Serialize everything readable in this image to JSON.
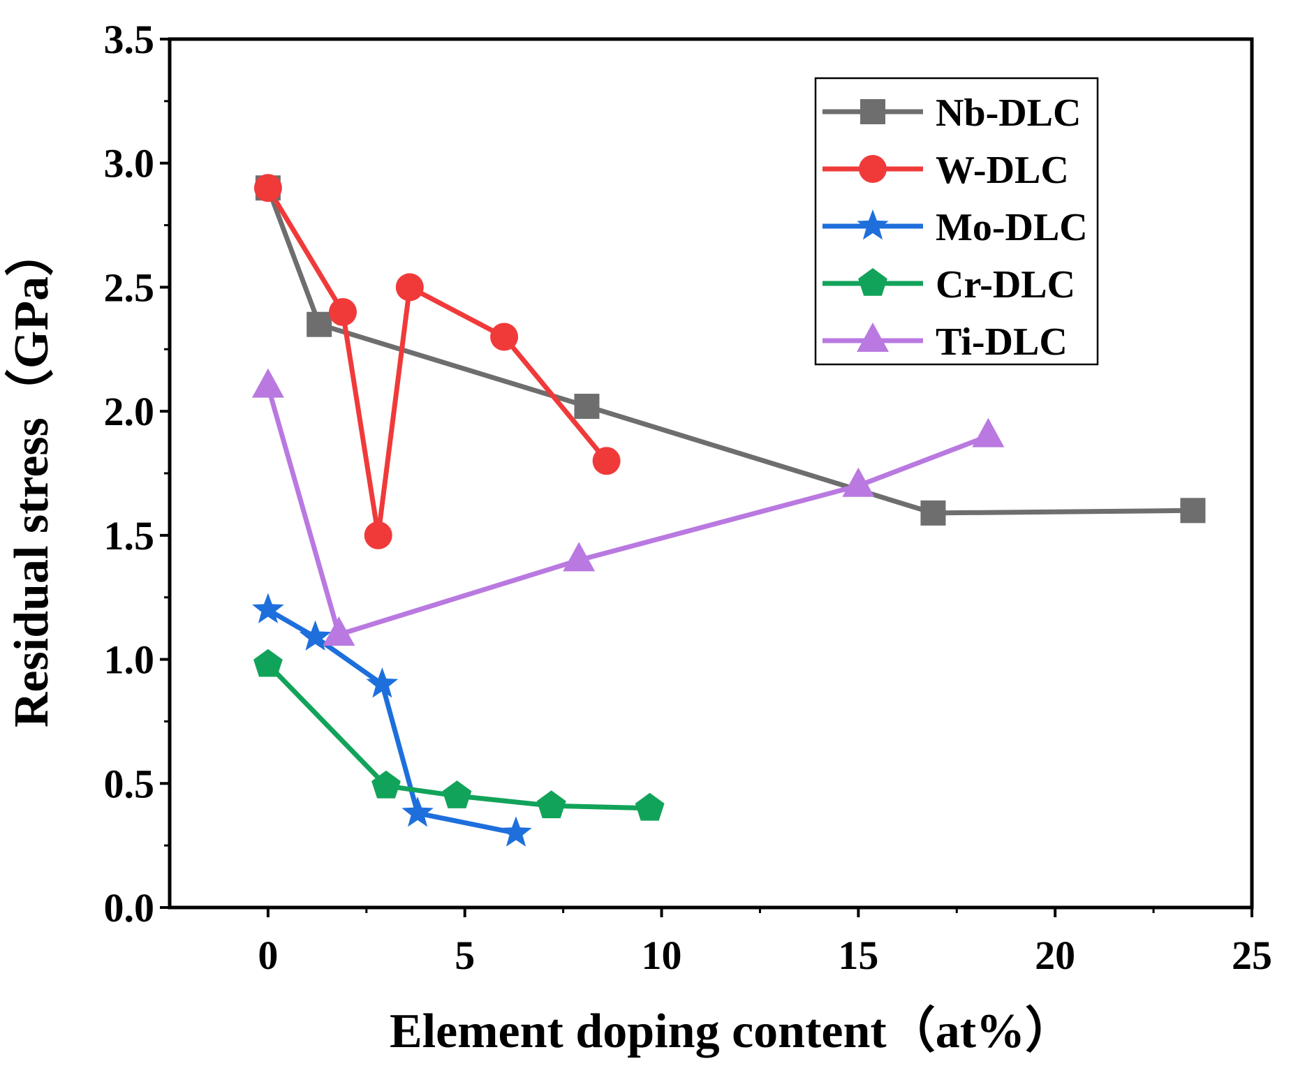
{
  "chart_data": {
    "type": "line",
    "title": "",
    "xlabel": "Element doping content（at%）",
    "ylabel": "Residual stress（GPa）",
    "xlim": [
      -2.5,
      25
    ],
    "ylim": [
      0,
      3.5
    ],
    "x_ticks": [
      0,
      5,
      10,
      15,
      20,
      25
    ],
    "y_ticks": [
      0.0,
      0.5,
      1.0,
      1.5,
      2.0,
      2.5,
      3.0,
      3.5
    ],
    "x_tick_labels": [
      "0",
      "5",
      "10",
      "15",
      "20",
      "25"
    ],
    "y_tick_labels": [
      "0.0",
      "0.5",
      "1.0",
      "1.5",
      "2.0",
      "2.5",
      "3.0",
      "3.5"
    ],
    "grid": false,
    "legend_position": "top-right",
    "series": [
      {
        "name": "Nb-DLC",
        "marker": "square",
        "color": "#6e6e6e",
        "x": [
          0,
          1.3,
          8.1,
          16.9,
          23.5
        ],
        "y": [
          2.9,
          2.35,
          2.02,
          1.59,
          1.6
        ]
      },
      {
        "name": "W-DLC",
        "marker": "circle",
        "color": "#f03a3a",
        "x": [
          0,
          1.9,
          2.8,
          3.6,
          6.0,
          8.6
        ],
        "y": [
          2.9,
          2.4,
          1.5,
          2.5,
          2.3,
          1.8
        ]
      },
      {
        "name": "Mo-DLC",
        "marker": "star",
        "color": "#1e6fdc",
        "x": [
          0,
          1.2,
          2.9,
          3.8,
          6.3
        ],
        "y": [
          1.2,
          1.09,
          0.9,
          0.38,
          0.3
        ]
      },
      {
        "name": "Cr-DLC",
        "marker": "pentagon",
        "color": "#12a35a",
        "x": [
          0,
          3.0,
          4.8,
          7.2,
          9.7
        ],
        "y": [
          0.98,
          0.49,
          0.45,
          0.41,
          0.4
        ]
      },
      {
        "name": "Ti-DLC",
        "marker": "triangle",
        "color": "#b979e0",
        "x": [
          0,
          1.8,
          7.9,
          15.0,
          18.3
        ],
        "y": [
          2.1,
          1.1,
          1.4,
          1.7,
          1.9
        ]
      }
    ]
  }
}
